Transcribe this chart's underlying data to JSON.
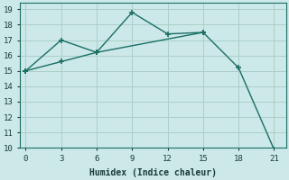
{
  "xlabel": "Humidex (Indice chaleur)",
  "background_color": "#cce8e8",
  "grid_color": "#aad0c8",
  "line_color": "#1a6e64",
  "series1_x": [
    0,
    3,
    6,
    9,
    12,
    15
  ],
  "series1_y": [
    15.0,
    15.6,
    16.2,
    18.8,
    17.4,
    17.5
  ],
  "series2_x": [
    0,
    3,
    6,
    15,
    18,
    21
  ],
  "series2_y": [
    15.0,
    17.0,
    16.2,
    17.5,
    15.2,
    9.9
  ],
  "xlim": [
    -0.5,
    22
  ],
  "ylim": [
    10,
    19.4
  ],
  "xticks": [
    0,
    3,
    6,
    9,
    12,
    15,
    18,
    21
  ],
  "yticks": [
    10,
    11,
    12,
    13,
    14,
    15,
    16,
    17,
    18,
    19
  ],
  "xlabel_fontsize": 7,
  "tick_fontsize": 6.5
}
